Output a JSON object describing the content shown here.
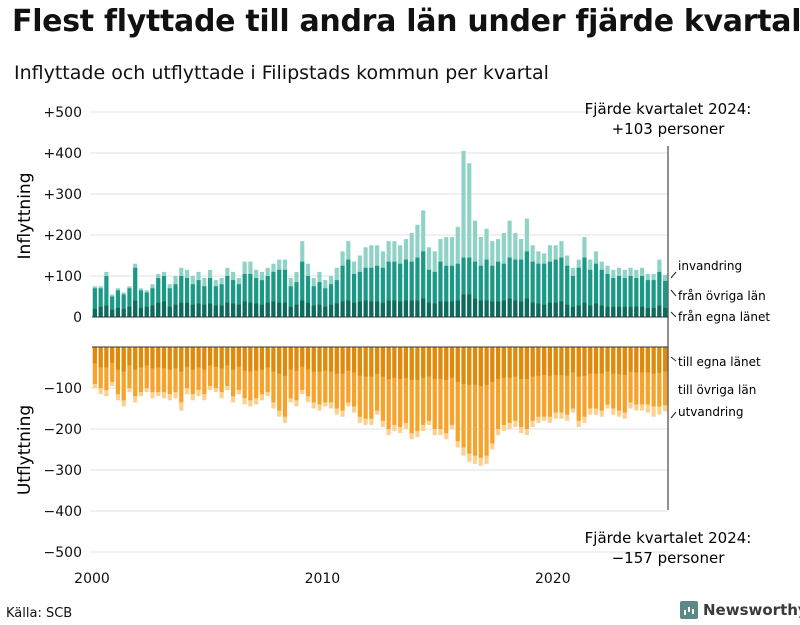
{
  "title": "Flest flyttade till andra län under fjärde kvartalet",
  "subtitle": "Inflyttade och utflyttade i Filipstads kommun per kvartal",
  "source": "Källa: SCB",
  "brand": "Newsworthy",
  "chart_data": {
    "type": "bar",
    "stacked": true,
    "x_start": "2000Q1",
    "x_end": "2024Q4",
    "ylim": [
      -500,
      500
    ],
    "yticks": [
      "+500",
      "+400",
      "+300",
      "+200",
      "+100",
      "0",
      "−100",
      "−200",
      "−300",
      "−400",
      "−500"
    ],
    "ytick_values": [
      500,
      400,
      300,
      200,
      100,
      0,
      -100,
      -200,
      -300,
      -400,
      -500
    ],
    "xticks": [
      "2000",
      "2010",
      "2020"
    ],
    "xtick_values": [
      2000,
      2010,
      2020
    ],
    "ylabel_top": "Inflyttning",
    "ylabel_bottom": "Utflyttning",
    "annotation_top": {
      "line1": "Fjärde kvartalet 2024:",
      "line2": "+103 personer"
    },
    "annotation_bottom": {
      "line1": "Fjärde kvartalet 2024:",
      "line2": "−157 personer"
    },
    "colors": {
      "in_own": "#0e6b5c",
      "in_other": "#1a9a86",
      "in_foreign": "#8fd3c7",
      "out_own": "#e08a0b",
      "out_other": "#f7a22a",
      "out_foreign": "#fcd08e"
    },
    "series_in": [
      {
        "name": "från egna länet",
        "key": "in_own"
      },
      {
        "name": "från övriga län",
        "key": "in_other"
      },
      {
        "name": "invandring",
        "key": "in_foreign"
      }
    ],
    "series_out": [
      {
        "name": "till egna länet",
        "key": "out_own"
      },
      {
        "name": "till övriga län",
        "key": "out_other"
      },
      {
        "name": "utvandring",
        "key": "out_foreign"
      }
    ],
    "inflow_total": [
      75,
      75,
      110,
      55,
      70,
      60,
      75,
      130,
      70,
      65,
      80,
      105,
      110,
      80,
      100,
      120,
      115,
      100,
      110,
      95,
      115,
      90,
      95,
      120,
      110,
      95,
      135,
      135,
      115,
      110,
      120,
      130,
      140,
      140,
      95,
      110,
      185,
      130,
      95,
      110,
      90,
      100,
      120,
      160,
      185,
      135,
      150,
      170,
      175,
      175,
      160,
      185,
      185,
      175,
      190,
      205,
      225,
      260,
      170,
      160,
      190,
      195,
      195,
      220,
      405,
      375,
      235,
      195,
      215,
      185,
      190,
      205,
      235,
      205,
      190,
      240,
      175,
      160,
      155,
      175,
      175,
      185,
      150,
      120,
      140,
      195,
      140,
      160,
      135,
      125,
      115,
      120,
      115,
      120,
      115,
      120,
      105,
      105,
      140,
      103
    ],
    "inflow_foreign": [
      5,
      5,
      10,
      5,
      5,
      5,
      5,
      10,
      5,
      5,
      10,
      10,
      10,
      10,
      20,
      20,
      20,
      20,
      20,
      20,
      20,
      15,
      15,
      20,
      20,
      15,
      30,
      30,
      20,
      20,
      20,
      20,
      25,
      25,
      20,
      25,
      50,
      30,
      20,
      25,
      20,
      20,
      30,
      35,
      45,
      30,
      40,
      50,
      55,
      50,
      40,
      50,
      50,
      45,
      50,
      70,
      80,
      100,
      55,
      50,
      55,
      70,
      70,
      90,
      260,
      230,
      100,
      70,
      75,
      60,
      55,
      75,
      90,
      65,
      50,
      80,
      40,
      30,
      25,
      40,
      35,
      40,
      25,
      20,
      20,
      50,
      25,
      30,
      20,
      20,
      20,
      20,
      20,
      20,
      20,
      20,
      15,
      15,
      30,
      15
    ],
    "inflow_own": [
      20,
      25,
      28,
      18,
      22,
      20,
      25,
      40,
      22,
      25,
      28,
      35,
      38,
      25,
      30,
      35,
      35,
      30,
      33,
      30,
      33,
      28,
      28,
      35,
      33,
      30,
      38,
      35,
      33,
      30,
      35,
      38,
      35,
      35,
      25,
      30,
      40,
      35,
      28,
      30,
      25,
      30,
      33,
      38,
      40,
      35,
      38,
      40,
      38,
      38,
      35,
      40,
      40,
      38,
      40,
      40,
      40,
      45,
      35,
      33,
      38,
      38,
      38,
      40,
      55,
      55,
      45,
      40,
      40,
      38,
      38,
      40,
      45,
      40,
      38,
      45,
      35,
      33,
      30,
      35,
      35,
      38,
      30,
      25,
      28,
      35,
      28,
      33,
      28,
      25,
      25,
      25,
      25,
      25,
      25,
      25,
      22,
      22,
      28,
      22
    ],
    "outflow_total": [
      100,
      115,
      120,
      95,
      130,
      145,
      110,
      135,
      120,
      110,
      125,
      120,
      125,
      130,
      125,
      155,
      115,
      130,
      120,
      130,
      105,
      110,
      125,
      105,
      135,
      115,
      140,
      145,
      140,
      130,
      120,
      150,
      170,
      185,
      135,
      145,
      115,
      135,
      150,
      155,
      145,
      150,
      165,
      170,
      145,
      160,
      185,
      190,
      190,
      165,
      195,
      215,
      205,
      210,
      200,
      225,
      220,
      205,
      190,
      215,
      215,
      225,
      200,
      245,
      265,
      280,
      285,
      290,
      285,
      250,
      215,
      205,
      200,
      195,
      210,
      215,
      195,
      185,
      180,
      185,
      175,
      175,
      180,
      160,
      195,
      185,
      165,
      165,
      170,
      150,
      165,
      170,
      175,
      150,
      155,
      155,
      160,
      170,
      165,
      157
    ],
    "outflow_foreign": [
      10,
      15,
      15,
      10,
      15,
      15,
      10,
      15,
      10,
      10,
      15,
      10,
      15,
      15,
      15,
      20,
      15,
      15,
      15,
      15,
      10,
      10,
      15,
      10,
      15,
      10,
      15,
      15,
      15,
      15,
      10,
      15,
      15,
      15,
      10,
      15,
      10,
      15,
      15,
      15,
      10,
      15,
      15,
      15,
      10,
      15,
      15,
      15,
      15,
      10,
      15,
      15,
      15,
      15,
      15,
      15,
      15,
      15,
      10,
      15,
      15,
      15,
      10,
      15,
      20,
      20,
      20,
      20,
      20,
      15,
      15,
      15,
      15,
      15,
      15,
      15,
      15,
      15,
      10,
      15,
      15,
      15,
      15,
      10,
      15,
      15,
      15,
      15,
      15,
      10,
      15,
      15,
      15,
      15,
      15,
      15,
      20,
      25,
      20,
      15
    ],
    "outflow_own": [
      40,
      50,
      50,
      38,
      55,
      60,
      45,
      55,
      50,
      45,
      52,
      50,
      52,
      55,
      52,
      60,
      48,
      55,
      50,
      55,
      45,
      48,
      52,
      45,
      55,
      48,
      58,
      60,
      58,
      55,
      50,
      60,
      65,
      70,
      55,
      58,
      48,
      55,
      60,
      60,
      58,
      60,
      65,
      65,
      58,
      62,
      70,
      72,
      72,
      65,
      72,
      78,
      75,
      78,
      75,
      80,
      80,
      75,
      72,
      78,
      78,
      80,
      75,
      85,
      90,
      92,
      92,
      95,
      92,
      85,
      78,
      75,
      75,
      72,
      78,
      78,
      72,
      70,
      68,
      70,
      68,
      68,
      70,
      62,
      72,
      70,
      65,
      65,
      65,
      60,
      65,
      66,
      68,
      60,
      62,
      62,
      62,
      65,
      63,
      60
    ]
  },
  "legend_labels": {
    "in_foreign": "invandring",
    "in_other": "från övriga län",
    "in_own": "från egna länet",
    "out_own": "till egna länet",
    "out_other": "till övriga län",
    "out_foreign": "utvandring"
  }
}
